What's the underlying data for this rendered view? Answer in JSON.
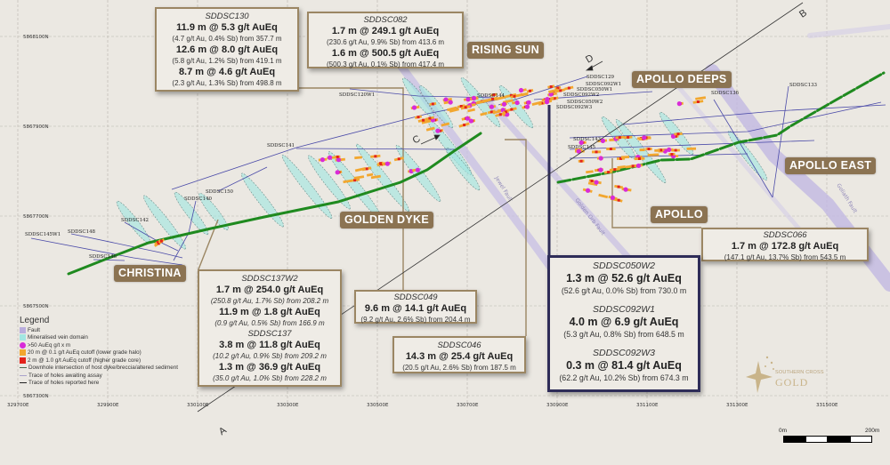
{
  "grid": {
    "eastings": [
      "329700E",
      "329900E",
      "330100E",
      "330300E",
      "330500E",
      "330700E",
      "330900E",
      "331100E",
      "331300E",
      "331500E"
    ],
    "northings": [
      "5868100N",
      "5867900N",
      "5867700N",
      "5867500N",
      "5867300N"
    ]
  },
  "areas": {
    "rising_sun": "RISING SUN",
    "apollo_deeps": "APOLLO DEEPS",
    "apollo_east": "APOLLO EAST",
    "apollo": "APOLLO",
    "golden_dyke": "GOLDEN DYKE",
    "christina": "CHRISTINA"
  },
  "faults": {
    "jewel": "Jewel Fault",
    "golden_orb": "Golden Orb Fault",
    "goliath": "Goliath Fault"
  },
  "sections": {
    "a": "A",
    "b": "B",
    "c": "C",
    "d": "D"
  },
  "holes": {
    "sddsc120w1": "SDDSC120W1",
    "sddsc141": "SDDSC141",
    "sddsc150": "SDDSC150",
    "sddsc140": "SDDSC140",
    "sddsc142": "SDDSC142",
    "sddsc148": "SDDSC148",
    "sddsc145w1": "SDDSC145W1",
    "sddsc146": "SDDSC146",
    "sddsc144": "SDDSC144",
    "sddsc129": "SDDSC129",
    "sddsc092w1": "SDDSC092W1",
    "sddsc050w1": "SDDSC050W1",
    "sddsc092w2": "SDDSC092W2",
    "sddsc050w2": "SDDSC050W2",
    "sddsc092w3": "SDDSC092W3",
    "sddsc136": "SDDSC136",
    "sddsc133": "SDDSC133",
    "sddsc143": "SDDSC143",
    "sddsc145": "SDDSC145"
  },
  "callouts": {
    "sddsc130": {
      "hole": "SDDSC130",
      "intercepts": [
        {
          "main": "11.9 m @ 5.3 g/t AuEq",
          "detail": "(4.7 g/t Au, 0.4% Sb) from 357.7 m"
        },
        {
          "main": "12.6 m @ 8.0 g/t AuEq",
          "detail": "(5.8 g/t Au, 1.2% Sb) from 419.1 m"
        },
        {
          "main": "8.7 m @ 4.6 g/t AuEq",
          "detail": "(2.3 g/t Au, 1.3% Sb) from 498.8 m"
        }
      ]
    },
    "sddsc082": {
      "hole": "SDDSC082",
      "intercepts": [
        {
          "main": "1.7 m @ 249.1 g/t AuEq",
          "detail": "(230.6 g/t Au, 9.9% Sb) from 413.6 m"
        },
        {
          "main": "1.6 m @ 500.5 g/t AuEq",
          "detail": "(500.3 g/t Au, 0.1% Sb) from 417.4 m"
        }
      ]
    },
    "sddsc137w2": {
      "hole": "SDDSC137W2",
      "intercepts": [
        {
          "main": "1.7 m @ 254.0 g/t AuEq",
          "detail": "(250.8 g/t Au, 1.7% Sb) from 208.2 m"
        },
        {
          "main": "11.9 m @ 1.8 g/t AuEq",
          "detail": "(0.9 g/t Au, 0.5% Sb) from 166.9 m"
        }
      ]
    },
    "sddsc137": {
      "hole": "SDDSC137",
      "intercepts": [
        {
          "main": "3.8 m @ 11.8 g/t AuEq",
          "detail": "(10.2 g/t Au, 0.9% Sb) from 209.2 m"
        },
        {
          "main": "1.3 m @ 36.9 g/t AuEq",
          "detail": "(35.0 g/t Au, 1.0% Sb) from 228.2 m"
        }
      ]
    },
    "sddsc049": {
      "hole": "SDDSC049",
      "intercepts": [
        {
          "main": "9.6 m @ 14.1 g/t AuEq",
          "detail": "(9.2 g/t Au, 2.6% Sb) from 204.4 m"
        }
      ]
    },
    "sddsc046": {
      "hole": "SDDSC046",
      "intercepts": [
        {
          "main": "14.3 m @ 25.4 g/t AuEq",
          "detail": "(20.5 g/t Au, 2.6% Sb) from 187.5 m"
        }
      ]
    },
    "sddsc066": {
      "hole": "SDDSC066",
      "intercepts": [
        {
          "main": "1.7 m @ 172.8 g/t AuEq",
          "detail": "(147.1 g/t Au, 13.7% Sb) from 543.5 m"
        }
      ]
    },
    "sddsc050w2": {
      "hole": "SDDSC050W2",
      "intercepts": [
        {
          "main": "1.3 m @ 52.6 g/t AuEq",
          "detail": "(52.6 g/t Au, 0.0% Sb) from 730.0 m"
        }
      ]
    },
    "sddsc092w1": {
      "hole": "SDDSC092W1",
      "intercepts": [
        {
          "main": "4.0 m @ 6.9 g/t AuEq",
          "detail": "(5.3 g/t Au, 0.8% Sb) from 648.5 m"
        }
      ]
    },
    "sddsc092w3": {
      "hole": "SDDSC092W3",
      "intercepts": [
        {
          "main": "0.3 m @ 81.4 g/t AuEq",
          "detail": "(62.2 g/t Au, 10.2% Sb) from 674.3 m"
        }
      ]
    }
  },
  "legend": {
    "title": "Legend",
    "items": [
      {
        "label": "Fault",
        "symbol": "swatch",
        "color": "#b9addd"
      },
      {
        "label": "Mineralised vein domain",
        "symbol": "swatch",
        "color": "#a2e6e2"
      },
      {
        "label": ">50 AuEq g/t x m",
        "symbol": "circle",
        "color": "#d82bd8"
      },
      {
        "label": "20 m @ 0.1 g/t AuEq cutoff (lower grade halo)",
        "symbol": "swatch",
        "color": "#f2a72f"
      },
      {
        "label": "2 m @ 1.0 g/t AuEq cutoff (higher grade core)",
        "symbol": "swatch",
        "color": "#e3231a"
      },
      {
        "label": "Downhole intersection of host dyke/breccia/altered sediment",
        "symbol": "line",
        "color": "#4d6b4d"
      },
      {
        "label": "Trace of holes awaiting assay",
        "symbol": "line",
        "color": "#aaa3cc"
      },
      {
        "label": "Trace of holes reported here",
        "symbol": "line",
        "color": "#222222"
      }
    ]
  },
  "scale": {
    "start": "0m",
    "end": "200m"
  },
  "logo": {
    "line1": "SOUTHERN CROSS",
    "line2": "GOLD"
  },
  "colors": {
    "background": "#ebe8e2",
    "area_label": "#8b7352",
    "callout_border": "#9b8663",
    "highlight_border": "#2e2c58",
    "dyke": "#1f8a1f",
    "hole_trace": "#4a4aa8"
  }
}
